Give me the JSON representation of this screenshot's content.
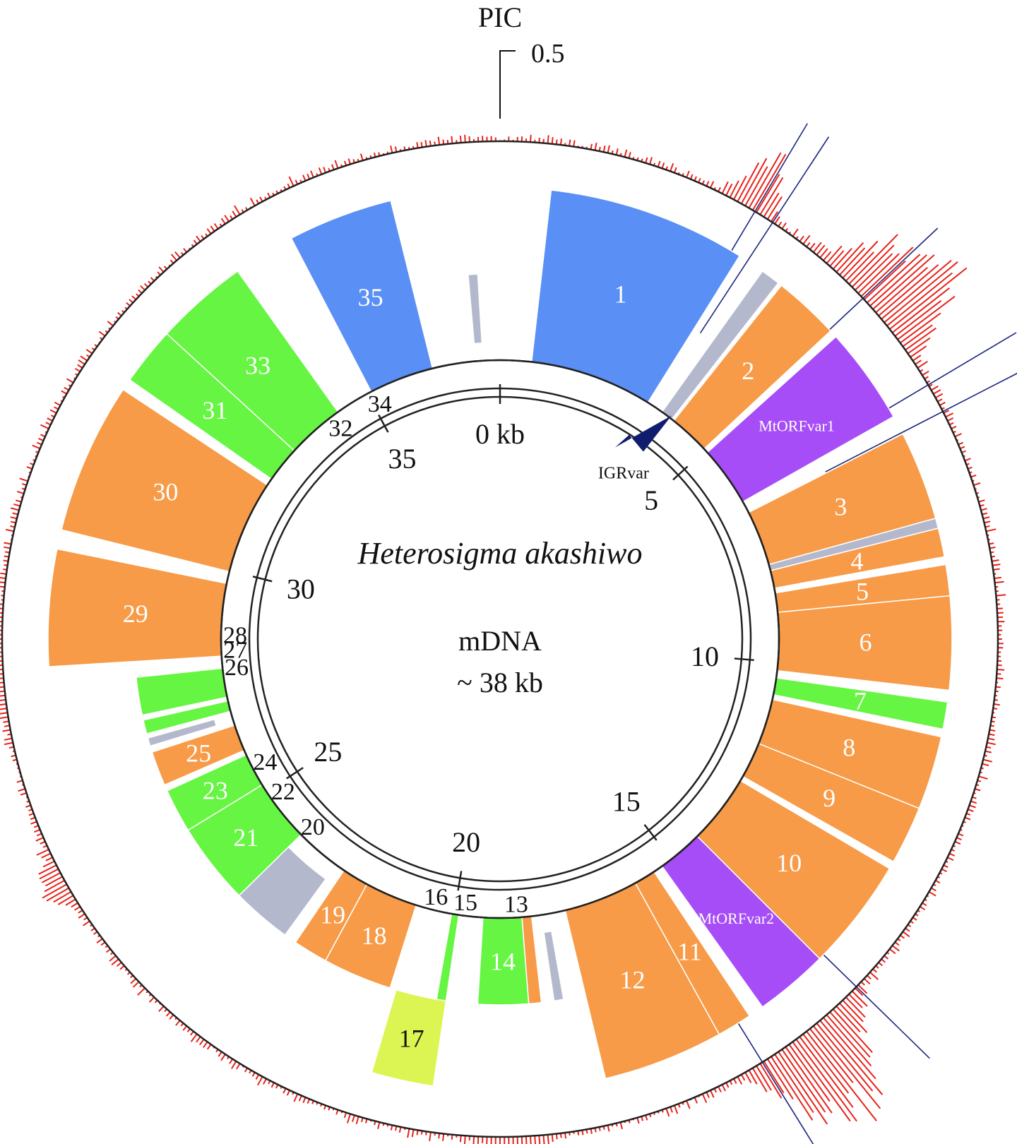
{
  "title": "Heterosigma akashiwo",
  "subtitle_line1": "mDNA",
  "subtitle_line2": "~ 38 kb",
  "pic": {
    "label": "PIC",
    "scale_label": "0.5",
    "color": "#e8221a"
  },
  "ruler": {
    "ticks": [
      {
        "kb": 0,
        "label": "0 kb"
      },
      {
        "kb": 5,
        "label": "5"
      },
      {
        "kb": 10,
        "label": "10"
      },
      {
        "kb": 15,
        "label": "15"
      },
      {
        "kb": 20,
        "label": "20"
      },
      {
        "kb": 25,
        "label": "25"
      },
      {
        "kb": 30,
        "label": "30"
      },
      {
        "kb": 35,
        "label": "35"
      }
    ]
  },
  "colors": {
    "blue": "#5a8ff5",
    "orange": "#f79b48",
    "green": "#66f542",
    "purple": "#a64df7",
    "grey": "#b3b8cc",
    "yellow": "#dcf552",
    "divider_line": "#1a2580",
    "igr_arrow": "#101c6e"
  },
  "genes": [
    {
      "label": "1",
      "color": "blue",
      "ring": "outer",
      "start_deg": 6.5,
      "end_deg": 32.0
    },
    {
      "label": "",
      "color": "grey",
      "ring": "outer",
      "start_deg": 35.5,
      "end_deg": 38.0
    },
    {
      "label": "2",
      "color": "orange",
      "ring": "outer",
      "start_deg": 38.5,
      "end_deg": 47.0
    },
    {
      "label": "MtORFvar1",
      "color": "purple",
      "ring": "outer",
      "start_deg": 48.0,
      "end_deg": 60.5
    },
    {
      "label": "3",
      "color": "orange",
      "ring": "outer",
      "start_deg": 63.0,
      "end_deg": 74.5
    },
    {
      "label": "",
      "color": "grey",
      "ring": "outer",
      "start_deg": 74.5,
      "end_deg": 75.8
    },
    {
      "label": "4",
      "color": "orange",
      "ring": "outer",
      "start_deg": 75.8,
      "end_deg": 79.5
    },
    {
      "label": "5",
      "color": "orange",
      "ring": "outer",
      "start_deg": 80.5,
      "end_deg": 84.5
    },
    {
      "label": "6",
      "color": "orange",
      "ring": "outer",
      "start_deg": 84.5,
      "end_deg": 96.5
    },
    {
      "label": "7",
      "color": "green",
      "ring": "outer",
      "start_deg": 98.0,
      "end_deg": 101.5
    },
    {
      "label": "8",
      "color": "orange",
      "ring": "outer",
      "start_deg": 102.5,
      "end_deg": 112.0
    },
    {
      "label": "9",
      "color": "orange",
      "ring": "outer",
      "start_deg": 112.0,
      "end_deg": 119.5
    },
    {
      "label": "10",
      "color": "orange",
      "ring": "outer",
      "start_deg": 120.5,
      "end_deg": 135.0
    },
    {
      "label": "MtORFvar2",
      "color": "purple",
      "ring": "outer",
      "start_deg": 135.0,
      "end_deg": 144.5
    },
    {
      "label": "11",
      "color": "orange",
      "ring": "outer",
      "start_deg": 146.5,
      "end_deg": 151.0
    },
    {
      "label": "12",
      "color": "orange",
      "ring": "outer",
      "start_deg": 151.0,
      "end_deg": 166.5
    },
    {
      "label": "",
      "color": "grey",
      "ring": "inner",
      "start_deg": 170.0,
      "end_deg": 171.5
    },
    {
      "label": "",
      "color": "orange",
      "ring": "inner",
      "start_deg": 173.5,
      "end_deg": 175.5
    },
    {
      "label": "14",
      "color": "green",
      "ring": "inner",
      "start_deg": 175.5,
      "end_deg": 183.5
    },
    {
      "label": "",
      "color": "green",
      "ring": "inner",
      "start_deg": 188.5,
      "end_deg": 190.0
    },
    {
      "label": "17",
      "color": "yellow",
      "ring": "outer",
      "start_deg": 188.5,
      "end_deg": 196.5
    },
    {
      "label": "18",
      "color": "orange",
      "ring": "inner",
      "start_deg": 197.5,
      "end_deg": 208.5
    },
    {
      "label": "19",
      "color": "orange",
      "ring": "inner",
      "start_deg": 208.5,
      "end_deg": 214.0
    },
    {
      "label": "",
      "color": "grey",
      "ring": "inner",
      "start_deg": 216.0,
      "end_deg": 225.5
    },
    {
      "label": "21",
      "color": "green",
      "ring": "inner",
      "start_deg": 225.5,
      "end_deg": 238.5
    },
    {
      "label": "23",
      "color": "green",
      "ring": "inner",
      "start_deg": 238.5,
      "end_deg": 245.5
    },
    {
      "label": "25",
      "color": "orange",
      "ring": "inner",
      "start_deg": 246.5,
      "end_deg": 252.0
    },
    {
      "label": "",
      "color": "grey",
      "ring": "inner",
      "start_deg": 253.0,
      "end_deg": 254.3
    },
    {
      "label": "",
      "color": "green",
      "ring": "inner",
      "start_deg": 255.0,
      "end_deg": 257.2
    },
    {
      "label": "",
      "color": "green",
      "ring": "inner",
      "start_deg": 258.0,
      "end_deg": 264.0
    },
    {
      "label": "29",
      "color": "orange",
      "ring": "outer",
      "start_deg": 266.5,
      "end_deg": 281.5
    },
    {
      "label": "30",
      "color": "orange",
      "ring": "outer",
      "start_deg": 284.0,
      "end_deg": 303.5
    },
    {
      "label": "31",
      "color": "green",
      "ring": "outer",
      "start_deg": 305.0,
      "end_deg": 312.5
    },
    {
      "label": "33",
      "color": "green",
      "ring": "outer",
      "start_deg": 312.5,
      "end_deg": 324.5
    },
    {
      "label": "",
      "color": "grey",
      "ring": "inner",
      "start_deg": 339.5,
      "end_deg": 341.5
    },
    {
      "label": "35",
      "color": "blue",
      "ring": "outer",
      "start_deg": 332.5,
      "end_deg": 346.0
    },
    {
      "label": "",
      "color": "grey",
      "ring": "inner",
      "start_deg": 355.0,
      "end_deg": 356.5
    }
  ],
  "outside_labels": [
    {
      "label": "13",
      "deg": 176.5
    },
    {
      "label": "15",
      "deg": 187.5
    },
    {
      "label": "16",
      "deg": 194.0
    },
    {
      "label": "20",
      "deg": 225.0
    },
    {
      "label": "22",
      "deg": 235.0
    },
    {
      "label": "24",
      "deg": 242.5
    },
    {
      "label": "26",
      "deg": 264.0
    },
    {
      "label": "27",
      "deg": 267.8
    },
    {
      "label": "28",
      "deg": 271.0
    },
    {
      "label": "32",
      "deg": 323.0
    },
    {
      "label": "34",
      "deg": 333.0
    }
  ],
  "igr": {
    "label": "IGRvar",
    "deg": 37.5
  }
}
